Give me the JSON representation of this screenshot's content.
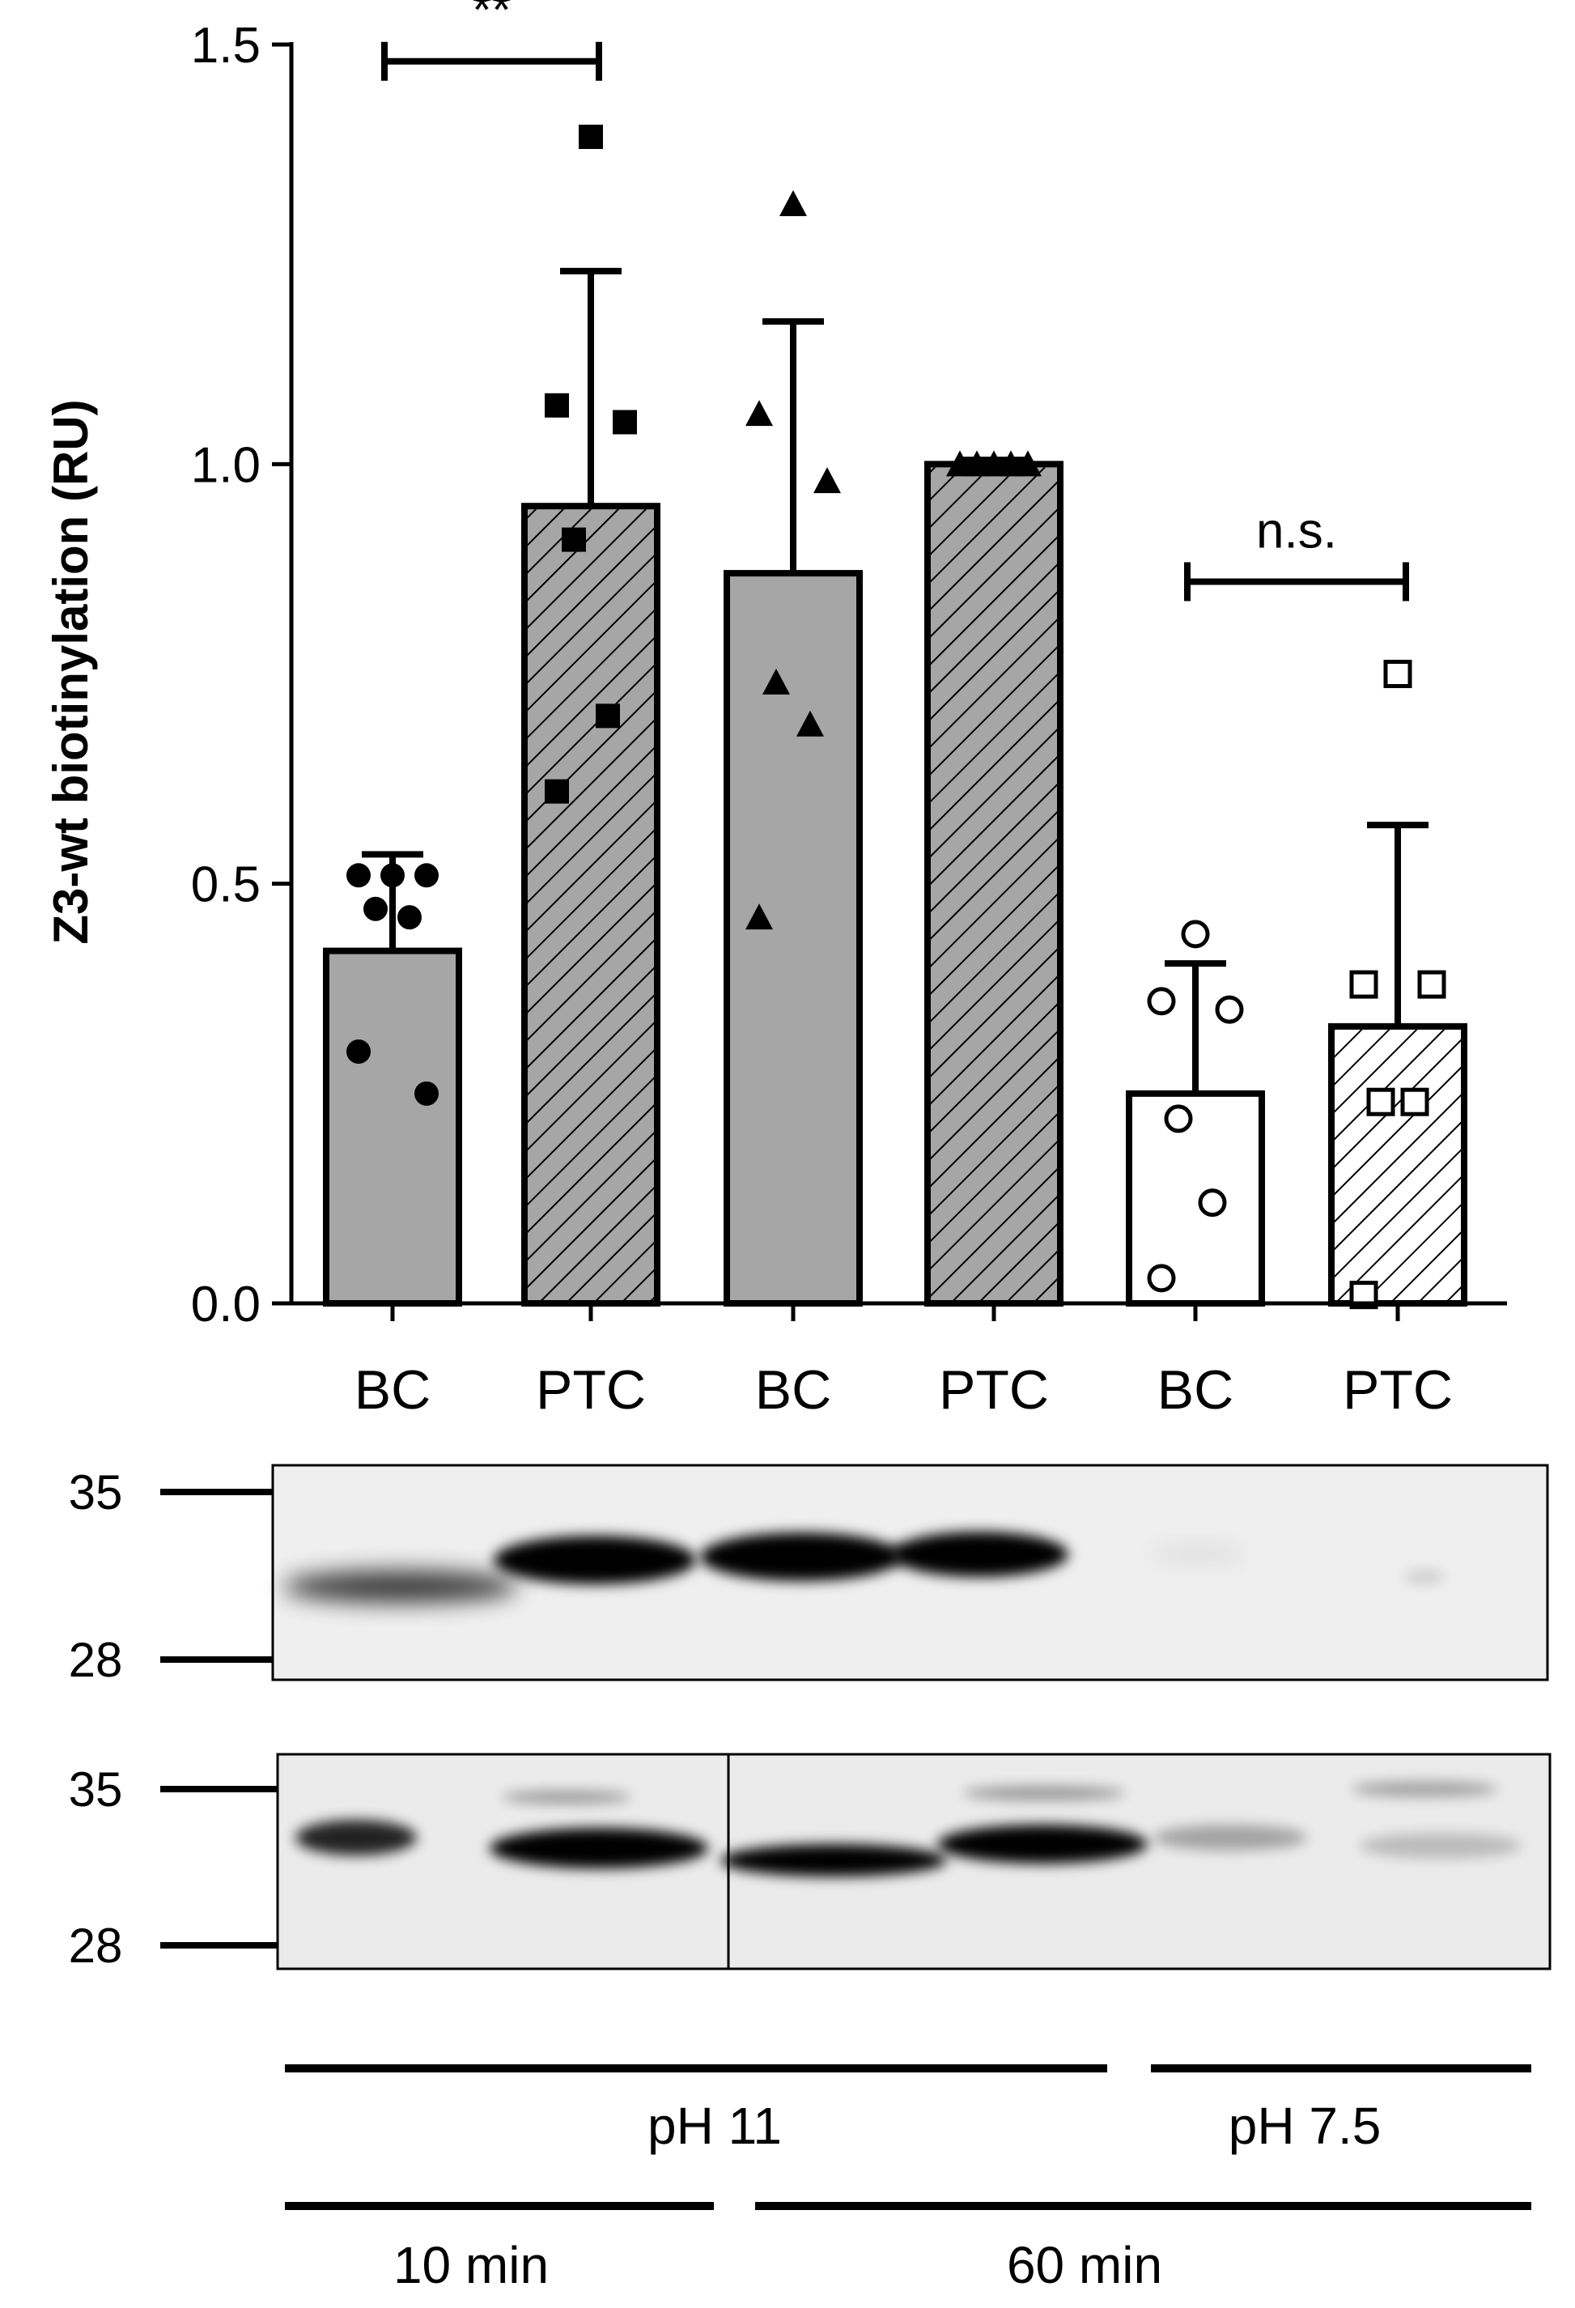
{
  "chart_data": {
    "type": "bar",
    "ylabel": "Z3-wt biotinylation (RU)",
    "ylim": [
      0,
      1.5
    ],
    "yticks": [
      {
        "value": 0,
        "label": "0.0"
      },
      {
        "value": 0.5,
        "label": "0.5"
      },
      {
        "value": 1.0,
        "label": "1.0"
      },
      {
        "value": 1.5,
        "label": "1.5"
      }
    ],
    "categories": [
      "BC",
      "PTC",
      "BC",
      "PTC",
      "BC",
      "PTC"
    ],
    "bars": [
      {
        "label": "BC",
        "value": 0.42,
        "sd": 0.115,
        "fill": "gray",
        "hatch": false,
        "marker": "circle-filled",
        "points": [
          0.51,
          0.51,
          0.51,
          0.47,
          0.46,
          0.3,
          0.25
        ]
      },
      {
        "label": "PTC",
        "value": 0.95,
        "sd": 0.28,
        "fill": "gray",
        "hatch": true,
        "marker": "square-filled",
        "points": [
          1.39,
          1.07,
          1.05,
          0.91,
          0.7,
          0.61
        ]
      },
      {
        "label": "BC",
        "value": 0.87,
        "sd": 0.3,
        "fill": "gray",
        "hatch": false,
        "marker": "triangle-filled",
        "points": [
          1.31,
          1.06,
          0.98,
          0.74,
          0.69,
          0.46
        ]
      },
      {
        "label": "PTC",
        "value": 1.0,
        "sd": 0.005,
        "fill": "gray",
        "hatch": true,
        "marker": "triangle-filled",
        "points": [
          1.0,
          1.0,
          1.0,
          1.0,
          1.0
        ]
      },
      {
        "label": "BC",
        "value": 0.25,
        "sd": 0.155,
        "fill": "white",
        "hatch": false,
        "marker": "circle-open",
        "points": [
          0.44,
          0.36,
          0.35,
          0.22,
          0.12,
          0.03
        ]
      },
      {
        "label": "PTC",
        "value": 0.33,
        "sd": 0.24,
        "fill": "white",
        "hatch": true,
        "marker": "square-open",
        "points": [
          0.75,
          0.38,
          0.38,
          0.24,
          0.24,
          0.01
        ]
      }
    ],
    "significance": [
      {
        "from": 0,
        "to": 1,
        "y": 1.48,
        "label": "**"
      },
      {
        "from": 4,
        "to": 5,
        "y": 0.86,
        "label": "n.s."
      }
    ],
    "colors": {
      "bar_gray": "#a6a6a6",
      "bar_white": "#ffffff",
      "outline": "#000000"
    }
  },
  "blots": [
    {
      "markers": [
        "35",
        "28"
      ],
      "lane_divider": false
    },
    {
      "markers": [
        "35",
        "28"
      ],
      "lane_divider": true
    }
  ],
  "conditions": {
    "ph_groups": [
      {
        "label": "pH 11"
      },
      {
        "label": "pH 7.5"
      }
    ],
    "time_groups": [
      {
        "label": "10 min"
      },
      {
        "label": "60 min"
      }
    ]
  }
}
